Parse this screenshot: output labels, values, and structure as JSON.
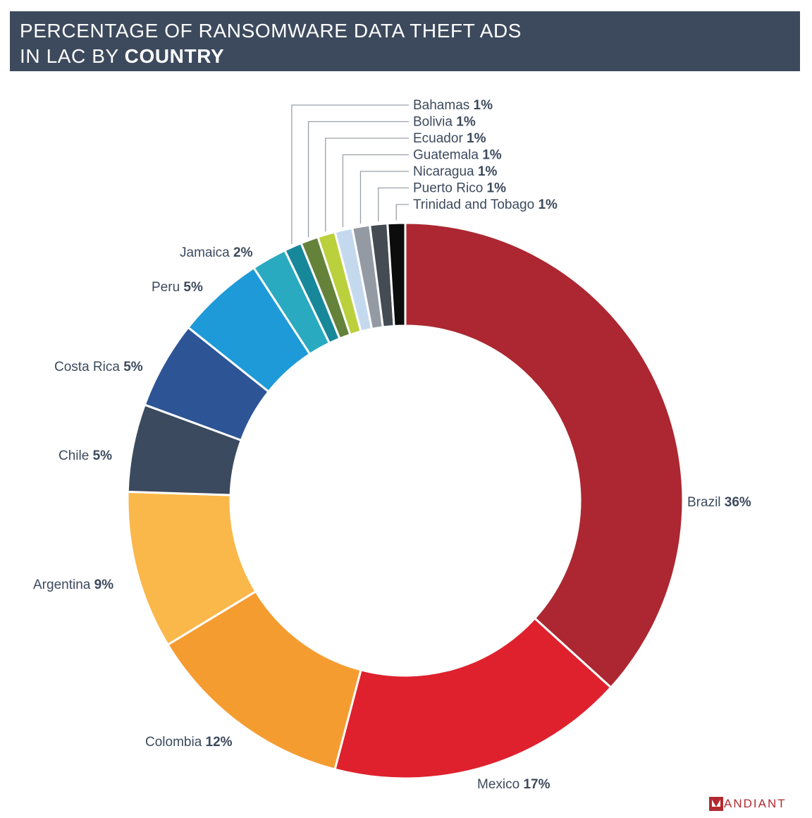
{
  "title": {
    "line1": "PERCENTAGE OF RANSOMWARE DATA THEFT ADS",
    "line2_prefix": "IN LAC BY ",
    "line2_bold": "COUNTRY"
  },
  "logo": {
    "text": "ANDIANT"
  },
  "chart_data": {
    "type": "pie",
    "variant": "donut",
    "title": "PERCENTAGE OF RANSOMWARE DATA THEFT ADS IN LAC BY COUNTRY",
    "unit": "%",
    "slices": [
      {
        "label": "Brazil",
        "value": 36,
        "color": "#ac2731"
      },
      {
        "label": "Mexico",
        "value": 17,
        "color": "#df212e"
      },
      {
        "label": "Colombia",
        "value": 12,
        "color": "#f59c31"
      },
      {
        "label": "Argentina",
        "value": 9,
        "color": "#fab84a"
      },
      {
        "label": "Chile",
        "value": 5,
        "color": "#3b4a5e"
      },
      {
        "label": "Costa Rica",
        "value": 5,
        "color": "#2d5596"
      },
      {
        "label": "Peru",
        "value": 5,
        "color": "#1e9ad8"
      },
      {
        "label": "Jamaica",
        "value": 2,
        "color": "#29aac0"
      },
      {
        "label": "Bahamas",
        "value": 1,
        "color": "#17879a"
      },
      {
        "label": "Bolivia",
        "value": 1,
        "color": "#64823a"
      },
      {
        "label": "Ecuador",
        "value": 1,
        "color": "#bad03c"
      },
      {
        "label": "Guatemala",
        "value": 1,
        "color": "#c5d9ee"
      },
      {
        "label": "Nicaragua",
        "value": 1,
        "color": "#949aa4"
      },
      {
        "label": "Puerto Rico",
        "value": 1,
        "color": "#454b53"
      },
      {
        "label": "Trinidad and Tobago",
        "value": 1,
        "color": "#0c0c0c"
      }
    ]
  }
}
